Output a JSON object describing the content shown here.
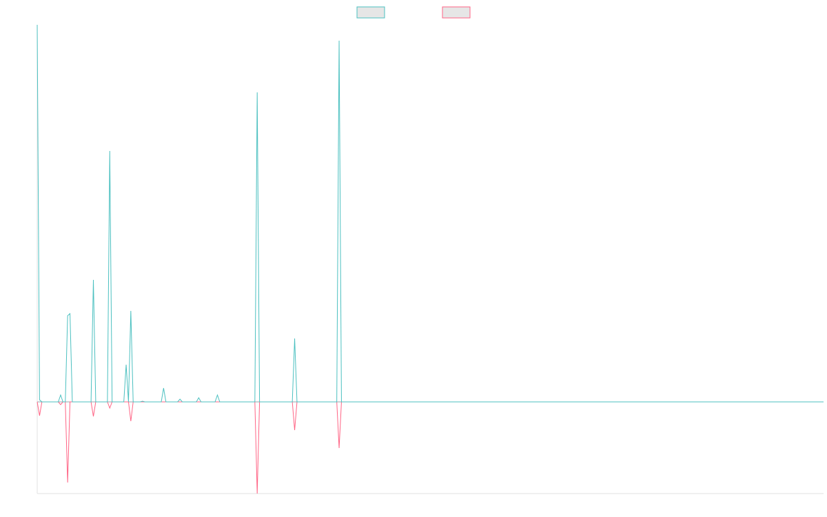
{
  "chart_data": {
    "type": "line",
    "legend": "top",
    "x": [
      0,
      1,
      2,
      9,
      10,
      11,
      12,
      13,
      14,
      15,
      23,
      24,
      25,
      30,
      31,
      32,
      37,
      38,
      39,
      40,
      41,
      44,
      45,
      46,
      53,
      54,
      55,
      60,
      61,
      62,
      68,
      69,
      70,
      76,
      77,
      78,
      93,
      94,
      95,
      109,
      110,
      111,
      128,
      129,
      130,
      336
    ],
    "xlim": [
      0,
      336
    ],
    "ylim": [
      -13.3,
      54.7
    ],
    "series": [
      {
        "color": "#ff6384",
        "values": [
          0,
          -2,
          0,
          0,
          -0.4,
          0,
          0,
          -11.7,
          0,
          0,
          0,
          -2.1,
          0,
          0,
          -0.9,
          0,
          0,
          0,
          0,
          -2.8,
          0,
          0,
          0,
          0,
          0,
          0,
          0,
          0,
          0,
          0,
          0,
          0,
          0,
          0,
          0,
          0,
          0,
          -13.3,
          0,
          0,
          -4.1,
          0,
          0,
          -6.7,
          0,
          0
        ]
      },
      {
        "color": "#4bc0c0",
        "values": [
          54.7,
          0.3,
          0,
          0,
          1.0,
          0,
          0,
          12.5,
          12.8,
          0,
          0,
          17.7,
          0,
          0,
          36.4,
          0,
          0,
          5.4,
          0,
          13.2,
          0,
          0,
          0.1,
          0,
          0,
          2.0,
          0,
          0,
          0.4,
          0,
          0,
          0.6,
          0,
          0,
          1.0,
          0,
          0,
          44.9,
          0,
          0,
          9.2,
          0,
          0,
          52.4,
          0,
          0
        ]
      }
    ]
  }
}
